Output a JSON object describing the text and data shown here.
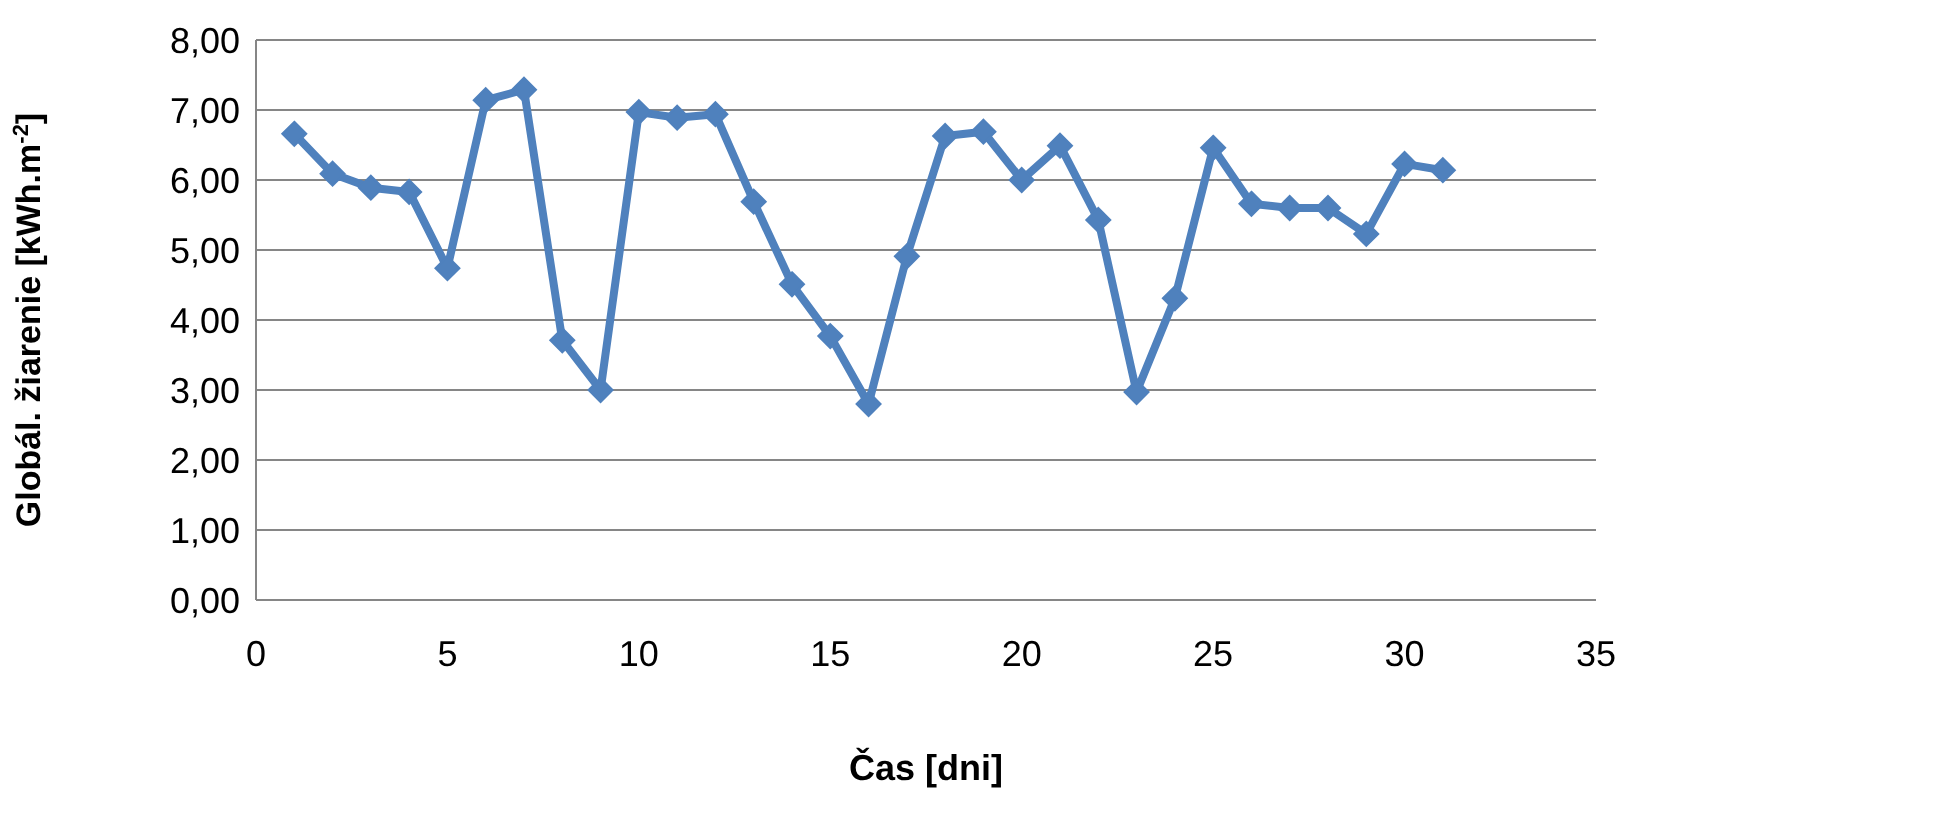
{
  "chart_data": {
    "type": "line",
    "xlabel": "Čas [dni]",
    "ylabel": "Globál. žiarenie [kWh.m$^{-2}$]",
    "x": [
      1,
      2,
      3,
      4,
      5,
      6,
      7,
      8,
      9,
      10,
      11,
      12,
      13,
      14,
      15,
      16,
      17,
      18,
      19,
      20,
      21,
      22,
      23,
      24,
      25,
      26,
      27,
      28,
      29,
      30,
      31
    ],
    "series": [
      {
        "color": "#4f81bd",
        "values": [
          6.66,
          6.09,
          5.89,
          5.83,
          4.74,
          7.14,
          7.29,
          3.71,
          3.0,
          6.97,
          6.89,
          6.94,
          5.69,
          4.51,
          3.77,
          2.8,
          4.91,
          6.63,
          6.69,
          6.0,
          6.49,
          5.43,
          2.97,
          4.31,
          6.46,
          5.66,
          5.6,
          5.6,
          5.23,
          6.23,
          6.14
        ]
      }
    ],
    "xlim": [
      0,
      35
    ],
    "xticks": [
      0,
      5,
      10,
      15,
      20,
      25,
      30,
      35
    ],
    "ylim": [
      0,
      8
    ],
    "yticks": [
      {
        "value": 0,
        "label": "0,00"
      },
      {
        "value": 1,
        "label": "1,00"
      },
      {
        "value": 2,
        "label": "2,00"
      },
      {
        "value": 3,
        "label": "3,00"
      },
      {
        "value": 4,
        "label": "4,00"
      },
      {
        "value": 5,
        "label": "5,00"
      },
      {
        "value": 6,
        "label": "6,00"
      },
      {
        "value": 7,
        "label": "7,00"
      },
      {
        "value": 8,
        "label": "8,00"
      }
    ],
    "grid": "y",
    "marker": "diamond",
    "line_style": "solid"
  }
}
